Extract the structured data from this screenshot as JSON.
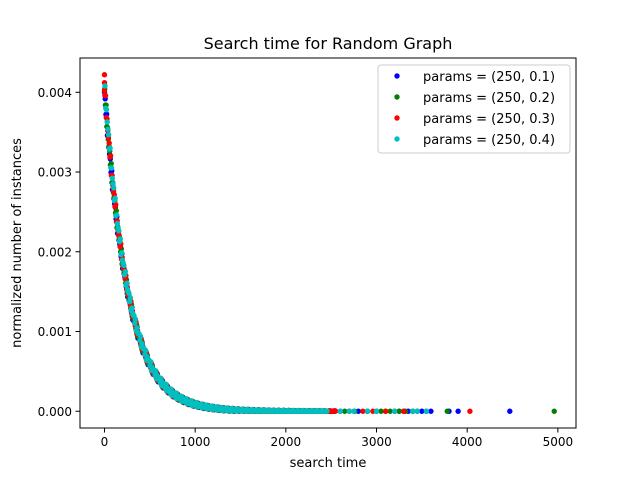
{
  "chart_data": {
    "type": "scatter",
    "title": "Search time for Random Graph",
    "xlabel": "search time",
    "ylabel": "normalized number of instances",
    "xlim": [
      -270,
      5200
    ],
    "ylim": [
      -0.00021,
      0.00443
    ],
    "x_ticks": [
      0,
      1000,
      2000,
      3000,
      4000,
      5000
    ],
    "x_tick_labels": [
      "0",
      "1000",
      "2000",
      "3000",
      "4000",
      "5000"
    ],
    "y_ticks": [
      0.0,
      0.001,
      0.002,
      0.003,
      0.004
    ],
    "y_tick_labels": [
      "0.000",
      "0.001",
      "0.002",
      "0.003",
      "0.004"
    ],
    "grid": false,
    "legend_position": "top-right",
    "curve": {
      "amplitude": 0.004,
      "decay": 260
    },
    "series": [
      {
        "name": "params = (250, 0.1)",
        "color": "#0000ff",
        "curve_range": [
          0,
          2550
        ],
        "tail_x": [
          2600,
          2700,
          2800,
          2900,
          3000,
          3100,
          3200,
          3250,
          3300,
          3350,
          3400,
          3450,
          3500,
          3550,
          3600,
          3800,
          3900,
          4470
        ],
        "tail_y": [
          0,
          0,
          0,
          0,
          0,
          0,
          0,
          0,
          0,
          0,
          0,
          0,
          0,
          0,
          0,
          0,
          0,
          0
        ]
      },
      {
        "name": "params = (250, 0.2)",
        "color": "#008000",
        "curve_range": [
          0,
          2500
        ],
        "tail_x": [
          2650,
          2760,
          2900,
          3050,
          3150,
          3250,
          3320,
          3400,
          3780,
          4960
        ],
        "tail_y": [
          0,
          0,
          0,
          0,
          0,
          0,
          0,
          0,
          0,
          0
        ]
      },
      {
        "name": "params = (250, 0.3)",
        "color": "#ff0000",
        "curve_range": [
          0,
          2550
        ],
        "tail_x": [
          2700,
          2850,
          2960,
          3100,
          3200,
          3300,
          4030
        ],
        "tail_y": [
          0,
          0,
          0,
          0,
          0,
          0,
          0
        ],
        "peak_x": [
          0,
          0,
          0
        ],
        "peak_y": [
          0.00422,
          0.00412,
          0.00402
        ]
      },
      {
        "name": "params = (250, 0.4)",
        "color": "#00bfbf",
        "curve_range": [
          0,
          2450
        ],
        "tail_x": [
          2600,
          2700,
          2750,
          2900,
          3000,
          3200,
          3400,
          3450,
          3550
        ],
        "tail_y": [
          0,
          0,
          0,
          0,
          0,
          0,
          0,
          0,
          0
        ]
      }
    ]
  }
}
